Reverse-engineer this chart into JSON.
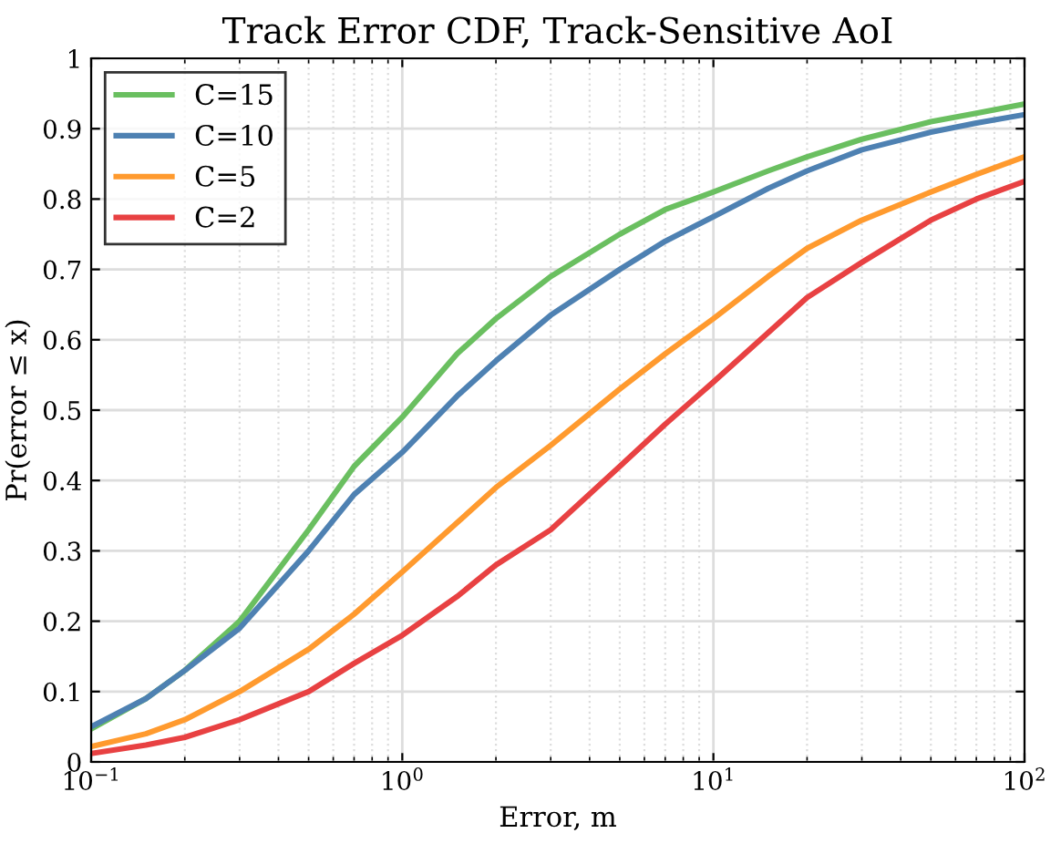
{
  "chart_data": {
    "type": "line",
    "title": "Track Error CDF, Track-Sensitive AoI",
    "xlabel": "Error, m",
    "ylabel": "Pr(error ≤ x)",
    "x": [
      0.1,
      0.15,
      0.2,
      0.3,
      0.5,
      0.7,
      1,
      1.5,
      2,
      3,
      5,
      7,
      10,
      15,
      20,
      30,
      50,
      70,
      100
    ],
    "series": [
      {
        "name": "C=15",
        "color": "#6abf60",
        "values": [
          0.047,
          0.09,
          0.13,
          0.2,
          0.33,
          0.42,
          0.49,
          0.58,
          0.63,
          0.69,
          0.75,
          0.785,
          0.81,
          0.84,
          0.86,
          0.885,
          0.91,
          0.922,
          0.935
        ]
      },
      {
        "name": "C=10",
        "color": "#4e81b2",
        "values": [
          0.05,
          0.09,
          0.13,
          0.19,
          0.3,
          0.38,
          0.44,
          0.52,
          0.57,
          0.635,
          0.7,
          0.74,
          0.775,
          0.815,
          0.84,
          0.87,
          0.895,
          0.908,
          0.92
        ]
      },
      {
        "name": "C=5",
        "color": "#ff9a2e",
        "values": [
          0.022,
          0.04,
          0.06,
          0.1,
          0.16,
          0.21,
          0.27,
          0.34,
          0.39,
          0.45,
          0.53,
          0.58,
          0.63,
          0.69,
          0.73,
          0.77,
          0.81,
          0.835,
          0.86
        ]
      },
      {
        "name": "C=2",
        "color": "#e84142",
        "values": [
          0.012,
          0.024,
          0.035,
          0.06,
          0.1,
          0.14,
          0.18,
          0.235,
          0.28,
          0.33,
          0.42,
          0.48,
          0.54,
          0.61,
          0.66,
          0.71,
          0.77,
          0.8,
          0.825
        ]
      }
    ],
    "log": "x",
    "xlim": [
      0.1,
      100
    ],
    "ylim": [
      0,
      1
    ],
    "xticks": [
      {
        "value": 0.1,
        "label": "10$^{−1}$"
      },
      {
        "value": 1,
        "label": "10$^{0}$"
      },
      {
        "value": 10,
        "label": "10$^{1}$"
      },
      {
        "value": 100,
        "label": "10$^{2}$"
      }
    ],
    "yticks": [
      0,
      0.1,
      0.2,
      0.3,
      0.4,
      0.5,
      0.6,
      0.7,
      0.8,
      0.9,
      1
    ],
    "grid": true,
    "legend": "top left",
    "line_style": "solid",
    "marker": "none"
  }
}
